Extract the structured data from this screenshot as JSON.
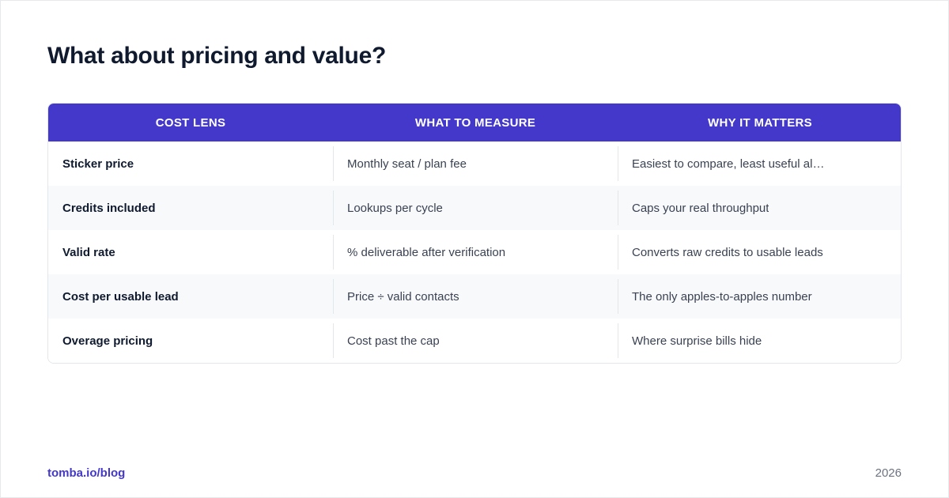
{
  "page": {
    "title": "What about pricing and value?"
  },
  "table": {
    "columns": [
      "COST LENS",
      "WHAT TO MEASURE",
      "WHY IT MATTERS"
    ],
    "rows": [
      {
        "lens": "Sticker price",
        "measure": "Monthly seat / plan fee",
        "matters": "Easiest to compare, least useful al…"
      },
      {
        "lens": "Credits included",
        "measure": "Lookups per cycle",
        "matters": "Caps your real throughput"
      },
      {
        "lens": "Valid rate",
        "measure": "% deliverable after verification",
        "matters": "Converts raw credits to usable leads"
      },
      {
        "lens": "Cost per usable lead",
        "measure": "Price ÷ valid contacts",
        "matters": "The only apples-to-apples number"
      },
      {
        "lens": "Overage pricing",
        "measure": "Cost past the cap",
        "matters": "Where surprise bills hide"
      }
    ]
  },
  "footer": {
    "link": "tomba.io/blog",
    "year": "2026"
  },
  "colors": {
    "accent": "#4338ca",
    "title": "#0f1a2e",
    "row_alt": "#f8f9fb"
  }
}
